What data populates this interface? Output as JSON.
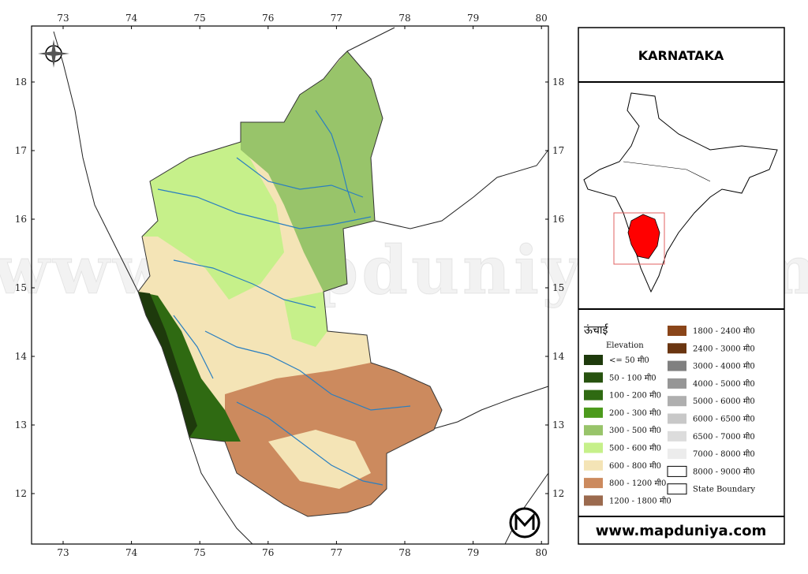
{
  "title": "KARNATAKA",
  "lon_ticks": [
    73,
    74,
    75,
    76,
    77,
    78,
    79,
    80
  ],
  "lat_ticks": [
    12,
    13,
    14,
    15,
    16,
    17,
    18
  ],
  "website": "www.mapduniya.com",
  "legend": {
    "heading": "ऊंचाई",
    "subheading": "Elevation",
    "items": [
      {
        "label": "<= 50 मी0",
        "color": "#1e3a0c"
      },
      {
        "label": "50 - 100 मी0",
        "color": "#27520f"
      },
      {
        "label": "100 - 200 मी0",
        "color": "#2f6a12"
      },
      {
        "label": "200 - 300 मी0",
        "color": "#4c9a1c"
      },
      {
        "label": "300 - 500 मी0",
        "color": "#98c46a"
      },
      {
        "label": "500 - 600 मी0",
        "color": "#c6f08a"
      },
      {
        "label": "600 - 800 मी0",
        "color": "#f4e4b6"
      },
      {
        "label": "800 - 1200 मी0",
        "color": "#cc8a5e"
      },
      {
        "label": "1200 - 1800 मी0",
        "color": "#9b6a4e"
      },
      {
        "label": "1800 - 2400 मी0",
        "color": "#8a4519"
      },
      {
        "label": "2400 - 3000 मी0",
        "color": "#6a3510"
      },
      {
        "label": "3000 - 4000 मी0",
        "color": "#808080"
      },
      {
        "label": "4000 - 5000 मी0",
        "color": "#969696"
      },
      {
        "label": "5000 - 6000 मी0",
        "color": "#afafaf"
      },
      {
        "label": "6000 - 6500 मी0",
        "color": "#c8c8c8"
      },
      {
        "label": "6500 - 7000 मी0",
        "color": "#dcdcdc"
      },
      {
        "label": "7000 - 8000 मी0",
        "color": "#ececec"
      },
      {
        "label": "8000 - 9000 मी0",
        "color": "#ffffff"
      },
      {
        "label": "State Boundary",
        "color": "#ffffff"
      }
    ]
  }
}
